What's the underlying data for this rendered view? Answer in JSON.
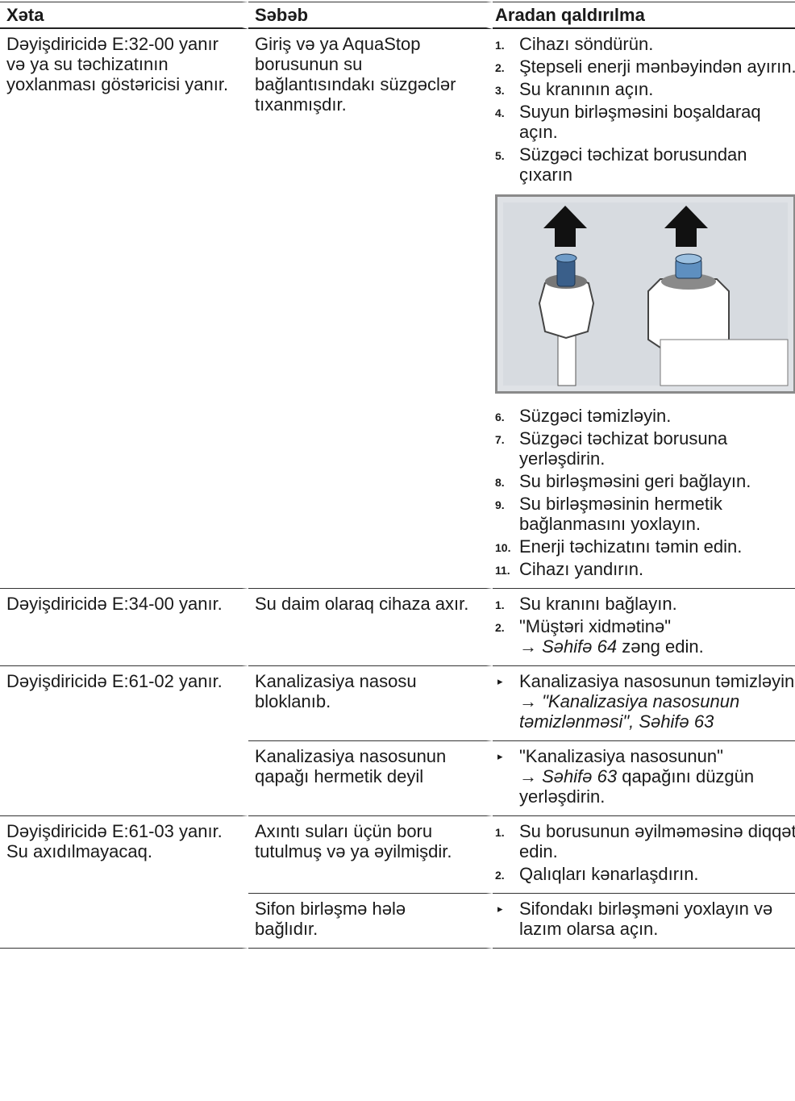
{
  "table": {
    "headers": [
      "Xəta",
      "Səbəb",
      "Aradan qaldırılma"
    ],
    "rows": [
      {
        "error": "Dəyişdiricidə E:32-00 yanır və ya su təchizatının yoxlanması göstəricisi yanır.",
        "causes": [
          {
            "cause": "Giriş və ya AquaStop borusunun su bağlantısındakı süzgəclər tıxanmışdır.",
            "steps": [
              {
                "number": "1.",
                "parts": [
                  {
                    "text": "Cihazı söndürün."
                  }
                ]
              },
              {
                "number": "2.",
                "parts": [
                  {
                    "text": "Ştepseli enerji mənbəyindən ayırın."
                  }
                ]
              },
              {
                "number": "3.",
                "parts": [
                  {
                    "text": "Su kranının açın."
                  }
                ]
              },
              {
                "number": "4.",
                "parts": [
                  {
                    "text": "Suyun birləşməsini boşaldaraq açın."
                  }
                ]
              },
              {
                "number": "5.",
                "parts": [
                  {
                    "text": "Süzgəci təchizat borusundan çıxarın"
                  }
                ]
              }
            ],
            "steps_after_image": [
              {
                "number": "6.",
                "parts": [
                  {
                    "text": "Süzgəci təmizləyin."
                  }
                ]
              },
              {
                "number": "7.",
                "parts": [
                  {
                    "text": "Süzgəci təchizat borusuna yerləşdirin."
                  }
                ]
              },
              {
                "number": "8.",
                "parts": [
                  {
                    "text": "Su birləşməsini geri bağlayın."
                  }
                ]
              },
              {
                "number": "9.",
                "parts": [
                  {
                    "text": "Su birləşməsinin hermetik bağlanmasını yoxlayın."
                  }
                ]
              },
              {
                "number": "10.",
                "parts": [
                  {
                    "text": "Enerji təchizatını təmin edin."
                  }
                ]
              },
              {
                "number": "11.",
                "parts": [
                  {
                    "text": "Cihazı yandırın."
                  }
                ]
              }
            ]
          }
        ]
      },
      {
        "error": "Dəyişdiricidə E:34-00 yanır.",
        "causes": [
          {
            "cause": "Su daim olaraq cihaza axır.",
            "steps": [
              {
                "number": "1.",
                "parts": [
                  {
                    "text": "Su kranını bağlayın."
                  }
                ]
              },
              {
                "number": "2.",
                "parts": [
                  {
                    "text": "\"Müştəri xidmətinə\"\n→ "
                  },
                  {
                    "text": "Səhifə 64",
                    "italic": true
                  },
                  {
                    "text": " zəng edin."
                  }
                ]
              }
            ]
          }
        ]
      },
      {
        "error": "Dəyişdiricidə E:61-02 yanır.",
        "causes": [
          {
            "cause": "Kanalizasiya nasosu bloklanıb.",
            "steps": [
              {
                "parts": [
                  {
                    "text": "Kanalizasiya nasosunun təmizləyin.\n→ "
                  },
                  {
                    "text": "\"Kanalizasiya nasosunun təmizlənməsi\", Səhifə 63",
                    "italic": true
                  }
                ]
              }
            ]
          },
          {
            "cause": "Kanalizasiya nasosunun qapağı hermetik deyil",
            "steps": [
              {
                "parts": [
                  {
                    "text": "\"Kanalizasiya nasosunun\"\n→ "
                  },
                  {
                    "text": "Səhifə 63",
                    "italic": true
                  },
                  {
                    "text": " qapağını düzgün yerləşdirin."
                  }
                ]
              }
            ]
          }
        ]
      },
      {
        "error": "Dəyişdiricidə E:61-03 yanır. Su axıdılmayacaq.",
        "causes": [
          {
            "cause": "Axıntı suları üçün boru tutulmuş və ya əyilmişdir.",
            "steps": [
              {
                "number": "1.",
                "parts": [
                  {
                    "text": "Su borusunun əyilməməsinə diqqət edin."
                  }
                ]
              },
              {
                "number": "2.",
                "parts": [
                  {
                    "text": "Qalıqları kənarlaşdırın."
                  }
                ]
              }
            ]
          },
          {
            "cause": "Sifon birləşmə hələ bağlıdır.",
            "steps": [
              {
                "parts": [
                  {
                    "text": "Sifondakı birləşməni yoxlayın və lazım olarsa açın."
                  }
                ]
              }
            ]
          }
        ]
      }
    ]
  }
}
